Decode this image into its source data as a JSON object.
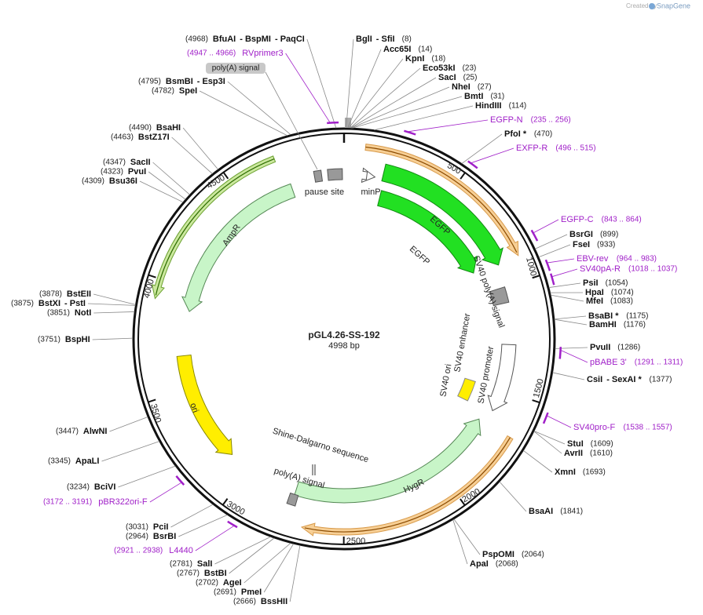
{
  "title": "pGL4.26-SS-192",
  "length_label": "4998 bp",
  "length_bp": 4998,
  "credit": {
    "prefix": "Created by",
    "brand": "SnapGene"
  },
  "top_feature": "poly(A) signal",
  "ticks": [
    500,
    1000,
    1500,
    2000,
    2500,
    3000,
    3500,
    4000,
    4500
  ],
  "features": [
    "pause site",
    "minP",
    "EGFP",
    "EGFP",
    "SV40 poly(A) signal",
    "SV40 enhancer",
    "SV40 ori",
    "SV40 promoter",
    "AmpR",
    "ori",
    "HygR",
    "Shine-Dalgarno sequence",
    "poly(A) signal"
  ],
  "enzymes": [
    {
      "names": [
        "BfuAI",
        "- BspMI",
        "- PaqCI"
      ],
      "site": "(4968)",
      "position": 4968
    },
    {
      "names": [
        "BsmBI",
        "- Esp3I"
      ],
      "site": "(4795)",
      "position": 4795
    },
    {
      "names": [
        "SpeI"
      ],
      "site": "(4782)",
      "position": 4782
    },
    {
      "names": [
        "BsaHI"
      ],
      "site": "(4490)",
      "position": 4490
    },
    {
      "names": [
        "BstZ17I"
      ],
      "site": "(4463)",
      "position": 4463
    },
    {
      "names": [
        "SacII"
      ],
      "site": "(4347)",
      "position": 4347
    },
    {
      "names": [
        "PvuI"
      ],
      "site": "(4323)",
      "position": 4323
    },
    {
      "names": [
        "Bsu36I"
      ],
      "site": "(4309)",
      "position": 4309
    },
    {
      "names": [
        "BstEII"
      ],
      "site": "(3878)",
      "position": 3878
    },
    {
      "names": [
        "BstXI",
        "- PstI"
      ],
      "site": "(3875)",
      "position": 3875
    },
    {
      "names": [
        "NotI"
      ],
      "site": "(3851)",
      "position": 3851
    },
    {
      "names": [
        "BspHI"
      ],
      "site": "(3751)",
      "position": 3751
    },
    {
      "names": [
        "AlwNI"
      ],
      "site": "(3447)",
      "position": 3447
    },
    {
      "names": [
        "ApaLI"
      ],
      "site": "(3345)",
      "position": 3345
    },
    {
      "names": [
        "BciVI"
      ],
      "site": "(3234)",
      "position": 3234
    },
    {
      "names": [
        "PciI"
      ],
      "site": "(3031)",
      "position": 3031
    },
    {
      "names": [
        "BsrBI"
      ],
      "site": "(2964)",
      "position": 2964
    },
    {
      "names": [
        "SalI"
      ],
      "site": "(2781)",
      "position": 2781
    },
    {
      "names": [
        "BstBI"
      ],
      "site": "(2767)",
      "position": 2767
    },
    {
      "names": [
        "AgeI"
      ],
      "site": "(2702)",
      "position": 2702
    },
    {
      "names": [
        "PmeI"
      ],
      "site": "(2691)",
      "position": 2691
    },
    {
      "names": [
        "BssHII"
      ],
      "site": "(2666)",
      "position": 2666
    },
    {
      "names": [
        "BglI",
        "- SfiI"
      ],
      "site": "(8)",
      "position": 8
    },
    {
      "names": [
        "Acc65I"
      ],
      "site": "(14)",
      "position": 14
    },
    {
      "names": [
        "KpnI"
      ],
      "site": "(18)",
      "position": 18
    },
    {
      "names": [
        "Eco53kI"
      ],
      "site": "(23)",
      "position": 23
    },
    {
      "names": [
        "SacI"
      ],
      "site": "(25)",
      "position": 25
    },
    {
      "names": [
        "NheI"
      ],
      "site": "(27)",
      "position": 27
    },
    {
      "names": [
        "BmtI"
      ],
      "site": "(31)",
      "position": 31
    },
    {
      "names": [
        "HindIII"
      ],
      "site": "(114)",
      "position": 114
    },
    {
      "names": [
        "PfoI *"
      ],
      "site": "(470)",
      "position": 470
    },
    {
      "names": [
        "BsrGI"
      ],
      "site": "(899)",
      "position": 899
    },
    {
      "names": [
        "FseI"
      ],
      "site": "(933)",
      "position": 933
    },
    {
      "names": [
        "PsiI"
      ],
      "site": "(1054)",
      "position": 1054
    },
    {
      "names": [
        "HpaI"
      ],
      "site": "(1074)",
      "position": 1074
    },
    {
      "names": [
        "MfeI"
      ],
      "site": "(1083)",
      "position": 1083
    },
    {
      "names": [
        "BsaBI *"
      ],
      "site": "(1175)",
      "position": 1175
    },
    {
      "names": [
        "BamHI"
      ],
      "site": "(1176)",
      "position": 1176
    },
    {
      "names": [
        "PvuII"
      ],
      "site": "(1286)",
      "position": 1286
    },
    {
      "names": [
        "CsiI",
        "- SexAI *"
      ],
      "site": "(1377)",
      "position": 1377
    },
    {
      "names": [
        "StuI"
      ],
      "site": "(1609)",
      "position": 1609
    },
    {
      "names": [
        "AvrII"
      ],
      "site": "(1610)",
      "position": 1610
    },
    {
      "names": [
        "XmnI"
      ],
      "site": "(1693)",
      "position": 1693
    },
    {
      "names": [
        "BsaAI"
      ],
      "site": "(1841)",
      "position": 1841
    },
    {
      "names": [
        "PspOMI"
      ],
      "site": "(2064)",
      "position": 2064
    },
    {
      "names": [
        "ApaI"
      ],
      "site": "(2068)",
      "position": 2068
    }
  ],
  "primers": [
    {
      "name": "RVprimer3",
      "range": "(4947 .. 4966)",
      "start": 4947,
      "end": 4966
    },
    {
      "name": "pBR322ori-F",
      "range": "(3172 .. 3191)",
      "start": 3172,
      "end": 3191
    },
    {
      "name": "L4440",
      "range": "(2921 .. 2938)",
      "start": 2921,
      "end": 2938
    },
    {
      "name": "EGFP-N",
      "range": "(235 .. 256)",
      "start": 235,
      "end": 256
    },
    {
      "name": "EXFP-R",
      "range": "(496 .. 515)",
      "start": 496,
      "end": 515
    },
    {
      "name": "EGFP-C",
      "range": "(843 .. 864)",
      "start": 843,
      "end": 864
    },
    {
      "name": "EBV-rev",
      "range": "(964 .. 983)",
      "start": 964,
      "end": 983
    },
    {
      "name": "SV40pA-R",
      "range": "(1018 .. 1037)",
      "start": 1018,
      "end": 1037
    },
    {
      "name": "pBABE 3'",
      "range": "(1291 .. 1311)",
      "start": 1291,
      "end": 1311
    },
    {
      "name": "SV40pro-F",
      "range": "(1538 .. 1557)",
      "start": 1538,
      "end": 1557
    }
  ]
}
